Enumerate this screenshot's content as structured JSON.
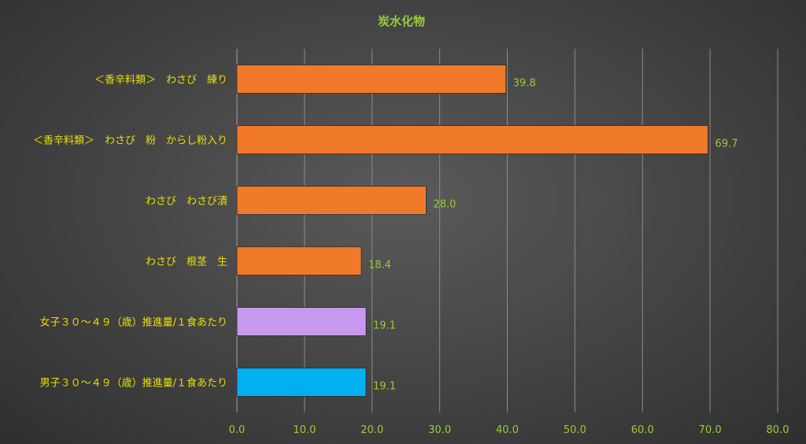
{
  "chart_data": {
    "type": "bar",
    "orientation": "horizontal",
    "title": "炭水化物",
    "categories": [
      "＜香辛料類＞　わさび　練り",
      "＜香辛料類＞　わさび　粉　からし粉入り",
      "わさび　わさび漬",
      "わさび　根茎　生",
      "女子３０～４９（歳）推進量/１食あたり",
      "男子３０～４９（歳）推進量/１食あたり"
    ],
    "values": [
      39.8,
      69.7,
      28.0,
      18.4,
      19.1,
      19.1
    ],
    "data_labels": [
      "39.8",
      "69.7",
      "28.0",
      "18.4",
      "19.1",
      "19.1"
    ],
    "bar_colors": [
      "#f07a2a",
      "#f07a2a",
      "#f07a2a",
      "#f07a2a",
      "#c898f0",
      "#00b0f0"
    ],
    "xlim": [
      0,
      80
    ],
    "xticks": [
      "0.0",
      "10.0",
      "20.0",
      "30.0",
      "40.0",
      "50.0",
      "60.0",
      "70.0",
      "80.0"
    ],
    "xlabel": "",
    "ylabel": "",
    "grid": true,
    "legend": "none"
  }
}
